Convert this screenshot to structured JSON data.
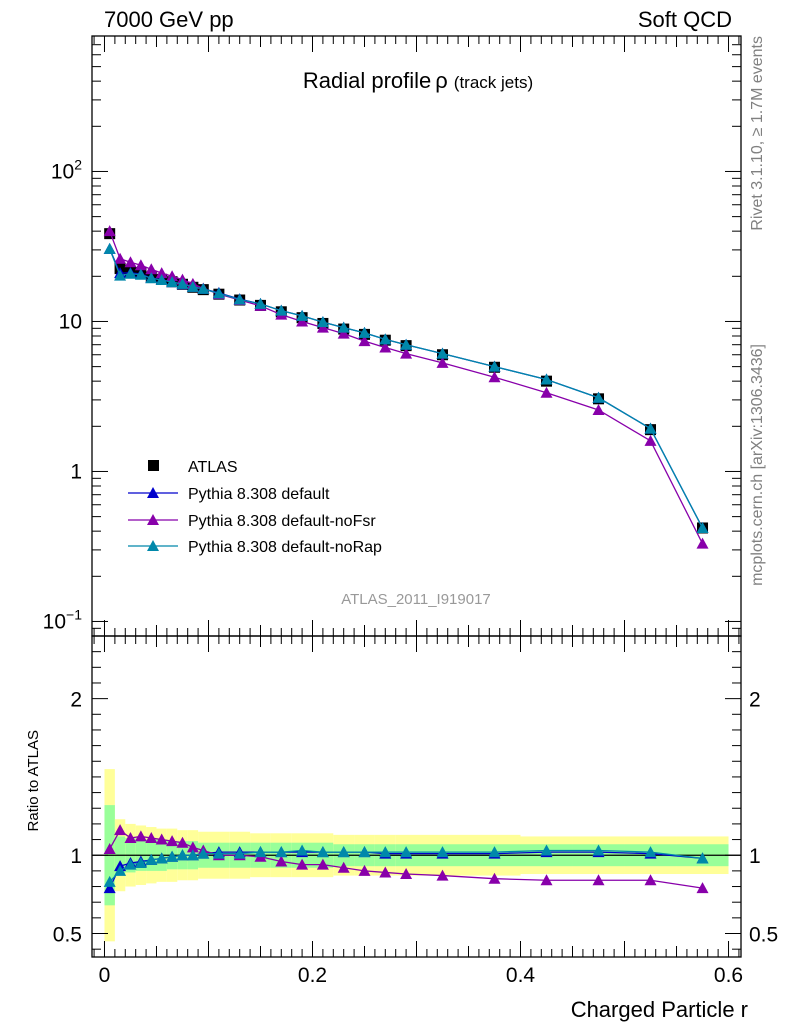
{
  "header": {
    "left": "7000 GeV pp",
    "right": "Soft QCD"
  },
  "side_text": {
    "rivet": "Rivet 3.1.10, ≥ 1.7M events",
    "mcplots": "mcplots.cern.ch [arXiv:1306.3436]"
  },
  "plot_title": {
    "main": "Radial profile",
    "symbol": "ρ",
    "suffix": "(track jets)"
  },
  "analysis_id": "ATLAS_2011_I919017",
  "legend": [
    {
      "label": "ATLAS",
      "color": "#000000",
      "marker": "square"
    },
    {
      "label": "Pythia 8.308 default",
      "color": "#0000cc",
      "marker": "triangle"
    },
    {
      "label": "Pythia 8.308 default-noFsr",
      "color": "#8800aa",
      "marker": "triangle"
    },
    {
      "label": "Pythia 8.308 default-noRap",
      "color": "#0088aa",
      "marker": "triangle"
    }
  ],
  "main_y_ticks": [
    {
      "value": 0.1,
      "base": "10",
      "exp": "−1"
    },
    {
      "value": 1,
      "base": "1",
      "exp": ""
    },
    {
      "value": 10,
      "base": "10",
      "exp": ""
    },
    {
      "value": 100,
      "base": "10",
      "exp": "2"
    }
  ],
  "ratio_ylabel": "Ratio to ATLAS",
  "ratio_y_ticks": [
    {
      "value": 0.5,
      "label": "0.5"
    },
    {
      "value": 1,
      "label": "1"
    },
    {
      "value": 2,
      "label": "2"
    }
  ],
  "x_ticks": [
    {
      "value": 0,
      "label": "0"
    },
    {
      "value": 0.2,
      "label": "0.2"
    },
    {
      "value": 0.4,
      "label": "0.4"
    },
    {
      "value": 0.6,
      "label": "0.6"
    }
  ],
  "xlabel": "Charged Particle r",
  "chart_data": {
    "type": "line",
    "main_scale": "log",
    "main_ylim": [
      0.08,
      800
    ],
    "ratio_ylim": [
      0.35,
      2.4
    ],
    "xlim": [
      -0.012,
      0.612
    ],
    "x": [
      0.005,
      0.015,
      0.025,
      0.035,
      0.045,
      0.055,
      0.065,
      0.075,
      0.085,
      0.095,
      0.11,
      0.13,
      0.15,
      0.17,
      0.19,
      0.21,
      0.23,
      0.25,
      0.27,
      0.29,
      0.325,
      0.375,
      0.425,
      0.475,
      0.525,
      0.575
    ],
    "series": [
      {
        "name": "ATLAS",
        "color": "#000000",
        "marker": "square",
        "values": [
          38.5,
          22.5,
          21.6,
          21.2,
          19.8,
          19.1,
          18.4,
          17.7,
          16.9,
          16.3,
          15.2,
          13.9,
          12.8,
          11.6,
          10.6,
          9.7,
          8.9,
          8.2,
          7.5,
          6.9,
          6.0,
          4.95,
          4.0,
          3.05,
          1.9,
          0.42
        ]
      },
      {
        "name": "Pythia 8.308 default",
        "color": "#0000cc",
        "marker": "triangle",
        "values": [
          30.5,
          21.0,
          21.1,
          20.7,
          19.5,
          19.0,
          18.3,
          17.7,
          17.0,
          16.5,
          15.5,
          14.1,
          13.1,
          11.8,
          10.9,
          9.9,
          9.1,
          8.4,
          7.6,
          7.0,
          6.1,
          5.0,
          4.1,
          3.1,
          1.93,
          0.42
        ]
      },
      {
        "name": "Pythia 8.308 default-noFsr",
        "color": "#8800aa",
        "marker": "triangle",
        "values": [
          40.0,
          26.2,
          24.8,
          23.7,
          22.3,
          21.0,
          20.0,
          19.0,
          17.8,
          16.6,
          15.2,
          13.9,
          12.7,
          11.1,
          10.0,
          9.1,
          8.3,
          7.4,
          6.7,
          6.1,
          5.3,
          4.25,
          3.35,
          2.57,
          1.6,
          0.33
        ]
      },
      {
        "name": "Pythia 8.308 default-noRap",
        "color": "#0088aa",
        "marker": "triangle",
        "values": [
          30.5,
          20.2,
          20.8,
          20.5,
          19.4,
          18.9,
          18.3,
          17.8,
          17.0,
          16.5,
          15.4,
          14.0,
          13.1,
          11.8,
          10.9,
          9.9,
          9.1,
          8.4,
          7.6,
          7.0,
          6.1,
          5.0,
          4.1,
          3.1,
          1.93,
          0.42
        ]
      }
    ],
    "ratio_series": [
      {
        "name": "Pythia 8.308 default",
        "color": "#0000cc",
        "values": [
          0.79,
          0.93,
          0.95,
          0.96,
          0.97,
          0.98,
          0.99,
          1.0,
          1.0,
          1.01,
          1.02,
          1.02,
          1.02,
          1.02,
          1.02,
          1.02,
          1.02,
          1.02,
          1.01,
          1.01,
          1.01,
          1.01,
          1.02,
          1.02,
          1.01,
          0.98
        ]
      },
      {
        "name": "Pythia 8.308 default-noFsr",
        "color": "#8800aa",
        "values": [
          1.04,
          1.16,
          1.11,
          1.12,
          1.11,
          1.1,
          1.09,
          1.08,
          1.05,
          1.03,
          1.0,
          1.0,
          0.99,
          0.96,
          0.94,
          0.94,
          0.92,
          0.9,
          0.89,
          0.88,
          0.87,
          0.85,
          0.84,
          0.84,
          0.84,
          0.79
        ]
      },
      {
        "name": "Pythia 8.308 default-noRap",
        "color": "#0088aa",
        "values": [
          0.83,
          0.9,
          0.94,
          0.95,
          0.97,
          0.98,
          0.99,
          1.0,
          1.0,
          1.01,
          1.01,
          1.01,
          1.02,
          1.02,
          1.03,
          1.02,
          1.02,
          1.02,
          1.02,
          1.02,
          1.02,
          1.02,
          1.03,
          1.03,
          1.02,
          0.98
        ]
      }
    ],
    "bands": {
      "edges": [
        0.0,
        0.01,
        0.02,
        0.03,
        0.04,
        0.05,
        0.06,
        0.07,
        0.08,
        0.09,
        0.1,
        0.12,
        0.14,
        0.16,
        0.18,
        0.2,
        0.22,
        0.24,
        0.26,
        0.28,
        0.3,
        0.35,
        0.4,
        0.45,
        0.5,
        0.55,
        0.6
      ],
      "stat_half": [
        0.32,
        0.12,
        0.11,
        0.1,
        0.1,
        0.1,
        0.09,
        0.09,
        0.09,
        0.08,
        0.08,
        0.08,
        0.08,
        0.08,
        0.08,
        0.08,
        0.07,
        0.07,
        0.07,
        0.07,
        0.07,
        0.07,
        0.07,
        0.07,
        0.07,
        0.07
      ],
      "syst_half": [
        0.55,
        0.23,
        0.2,
        0.19,
        0.18,
        0.17,
        0.17,
        0.16,
        0.16,
        0.15,
        0.15,
        0.15,
        0.14,
        0.14,
        0.14,
        0.14,
        0.13,
        0.13,
        0.13,
        0.13,
        0.13,
        0.13,
        0.12,
        0.12,
        0.12,
        0.12
      ],
      "stat_color": "#99ff99",
      "syst_color": "#ffff99"
    }
  }
}
